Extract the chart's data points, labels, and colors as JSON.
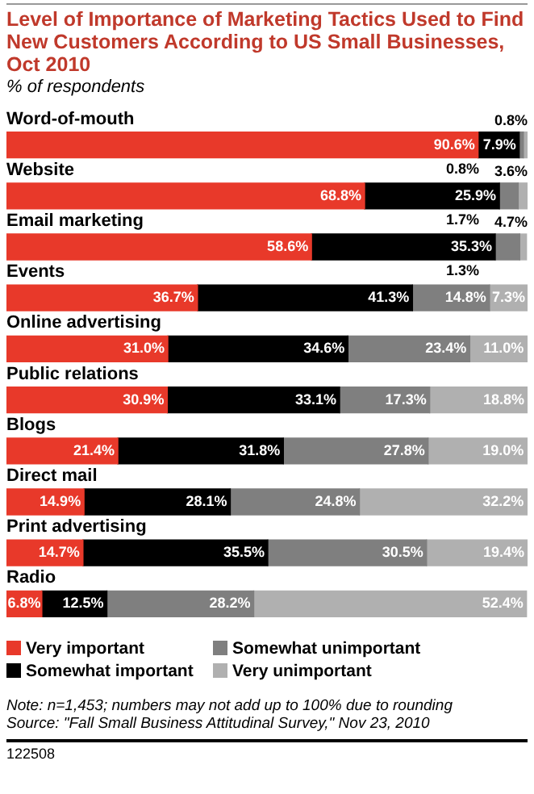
{
  "chart_data": {
    "type": "bar",
    "orientation": "horizontal",
    "stacked": true,
    "legend": "bottom",
    "tick_labels": "y",
    "title": "Level of Importance of Marketing Tactics Used to Find New Customers According to US Small Businesses, Oct 2010",
    "subtitle": "% of respondents",
    "categories": [
      "Word-of-mouth",
      "Website",
      "Email marketing",
      "Events",
      "Online advertising",
      "Public relations",
      "Blogs",
      "Direct mail",
      "Print advertising",
      "Radio"
    ],
    "series": [
      {
        "name": "Very important",
        "color": "#e8392a",
        "values": [
          90.6,
          68.8,
          58.6,
          36.7,
          31.0,
          30.9,
          21.4,
          14.9,
          14.7,
          6.8
        ],
        "value_labels": [
          "90.6%",
          "68.8%",
          "58.6%",
          "36.7%",
          "31.0%",
          "30.9%",
          "21.4%",
          "14.9%",
          "14.7%",
          "6.8%"
        ]
      },
      {
        "name": "Somewhat important",
        "color": "#000000",
        "values": [
          7.9,
          25.9,
          35.3,
          41.3,
          34.6,
          33.1,
          31.8,
          28.1,
          35.5,
          12.5
        ],
        "value_labels": [
          "7.9%",
          "25.9%",
          "35.3%",
          "41.3%",
          "34.6%",
          "33.1%",
          "31.8%",
          "28.1%",
          "35.5%",
          "12.5%"
        ]
      },
      {
        "name": "Somewhat unimportant",
        "color": "#7f7f7f",
        "values": [
          0.8,
          3.6,
          4.7,
          14.8,
          23.4,
          17.3,
          27.8,
          24.8,
          30.5,
          28.2
        ],
        "value_labels": [
          "0.8%",
          "3.6%",
          "4.7%",
          "14.8%",
          "23.4%",
          "17.3%",
          "27.8%",
          "24.8%",
          "30.5%",
          "28.2%"
        ]
      },
      {
        "name": "Very unimportant",
        "color": "#b0b0b0",
        "values": [
          0.8,
          1.7,
          1.3,
          7.3,
          11.0,
          18.8,
          19.0,
          32.2,
          19.4,
          52.4
        ],
        "value_labels": [
          "0.8%",
          "1.7%",
          "1.3%",
          "7.3%",
          "11.0%",
          "18.8%",
          "19.0%",
          "32.2%",
          "19.4%",
          "52.4%"
        ]
      }
    ],
    "annotations": [
      "Note: n=1,453; numbers may not add up to 100% due to rounding",
      "Source: \"Fall Small Business Attitudinal Survey,\" Nov 23, 2010",
      "122508"
    ]
  }
}
